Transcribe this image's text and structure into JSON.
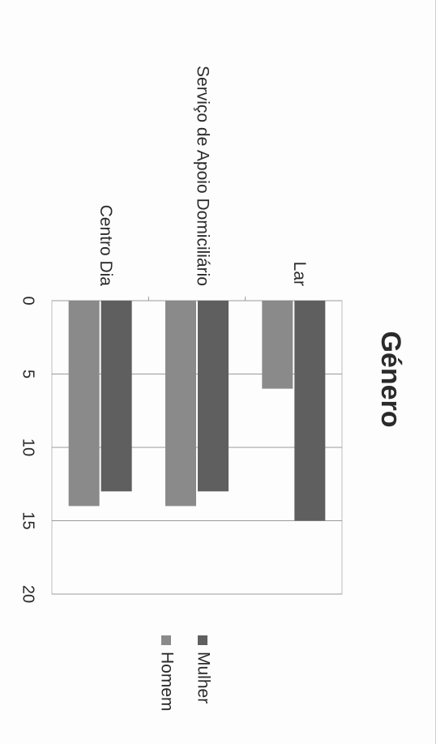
{
  "chart_data": {
    "type": "bar",
    "orientation": "horizontal",
    "title": "Género",
    "categories": [
      "Lar",
      "Serviço de Apoio Domiciliário",
      "Centro Dia"
    ],
    "series": [
      {
        "name": "Mulher",
        "values": [
          15,
          13,
          13
        ],
        "color": "#5f5f5f"
      },
      {
        "name": "Homem",
        "values": [
          6,
          14,
          14
        ],
        "color": "#8a8a8a"
      }
    ],
    "xticks": [
      0,
      5,
      10,
      15,
      20
    ],
    "xlim": [
      0,
      20
    ],
    "grid": true,
    "legend": "right",
    "xlabel": "",
    "ylabel": ""
  }
}
